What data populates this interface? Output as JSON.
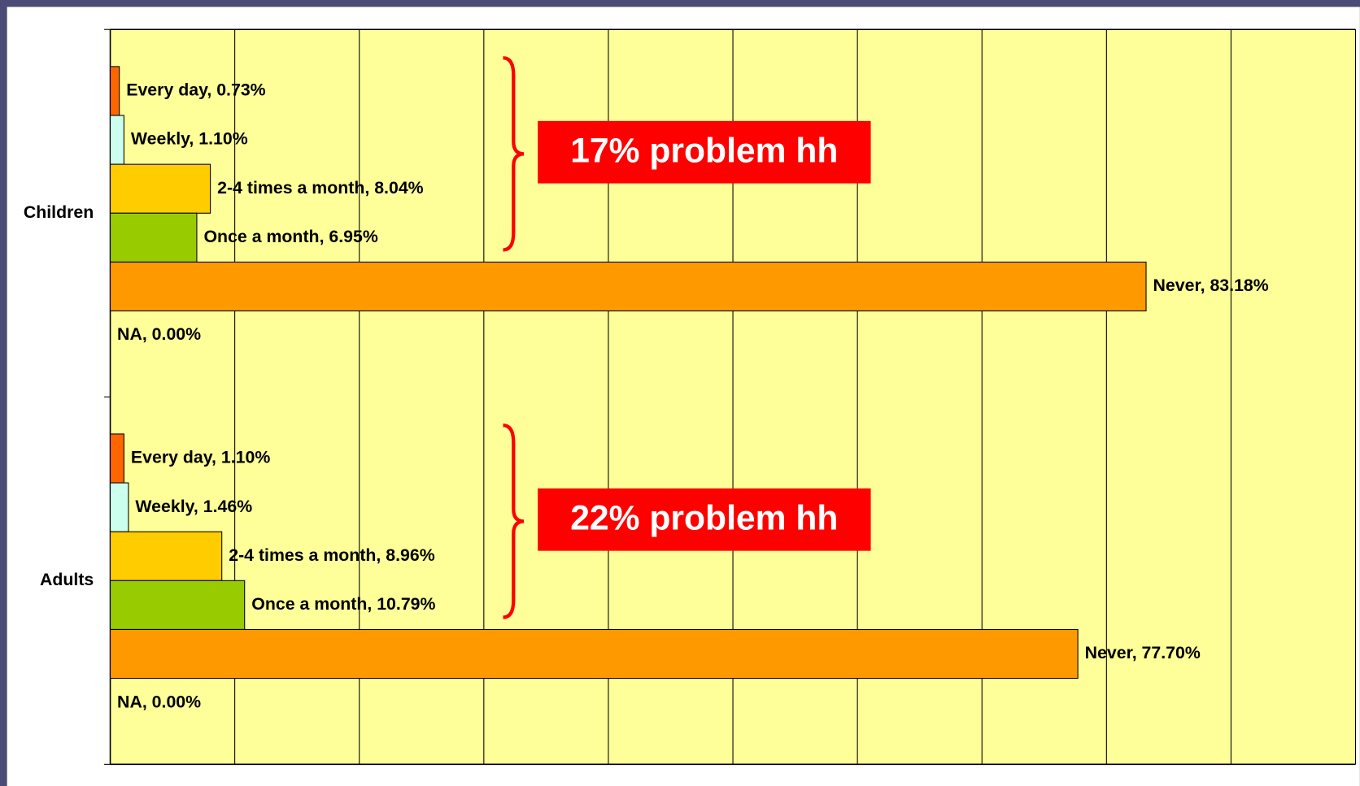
{
  "chart_data": {
    "type": "hbar_grouped",
    "categories": [
      "Children",
      "Adults"
    ],
    "series": [
      {
        "name": "Every day",
        "color": "#ff6600",
        "values": [
          0.73,
          1.1
        ],
        "value_labels": [
          "Every day, 0.73%",
          "Every day, 1.10%"
        ]
      },
      {
        "name": "Weekly",
        "color": "#ccffee",
        "values": [
          1.1,
          1.46
        ],
        "value_labels": [
          "Weekly, 1.10%",
          "Weekly, 1.46%"
        ]
      },
      {
        "name": "2-4 times a month",
        "color": "#ffcc00",
        "values": [
          8.04,
          8.96
        ],
        "value_labels": [
          "2-4 times a month, 8.04%",
          "2-4 times a month, 8.96%"
        ]
      },
      {
        "name": "Once a month",
        "color": "#99cc00",
        "values": [
          6.95,
          10.79
        ],
        "value_labels": [
          "Once a month, 6.95%",
          "Once a month, 10.79%"
        ]
      },
      {
        "name": "Never",
        "color": "#ff9900",
        "values": [
          83.18,
          77.7
        ],
        "value_labels": [
          "Never, 83.18%",
          "Never, 77.70%"
        ]
      },
      {
        "name": "NA",
        "color": "#ffffff",
        "values": [
          0.0,
          0.0
        ],
        "value_labels": [
          "NA, 0.00%",
          "NA, 0.00%"
        ]
      }
    ],
    "xlim": [
      0,
      100
    ],
    "xticks": [
      0,
      10,
      20,
      30,
      40,
      50,
      60,
      70,
      80,
      90,
      100
    ],
    "grid": true,
    "annotations": [
      "17% problem hh",
      "22% problem hh"
    ]
  }
}
